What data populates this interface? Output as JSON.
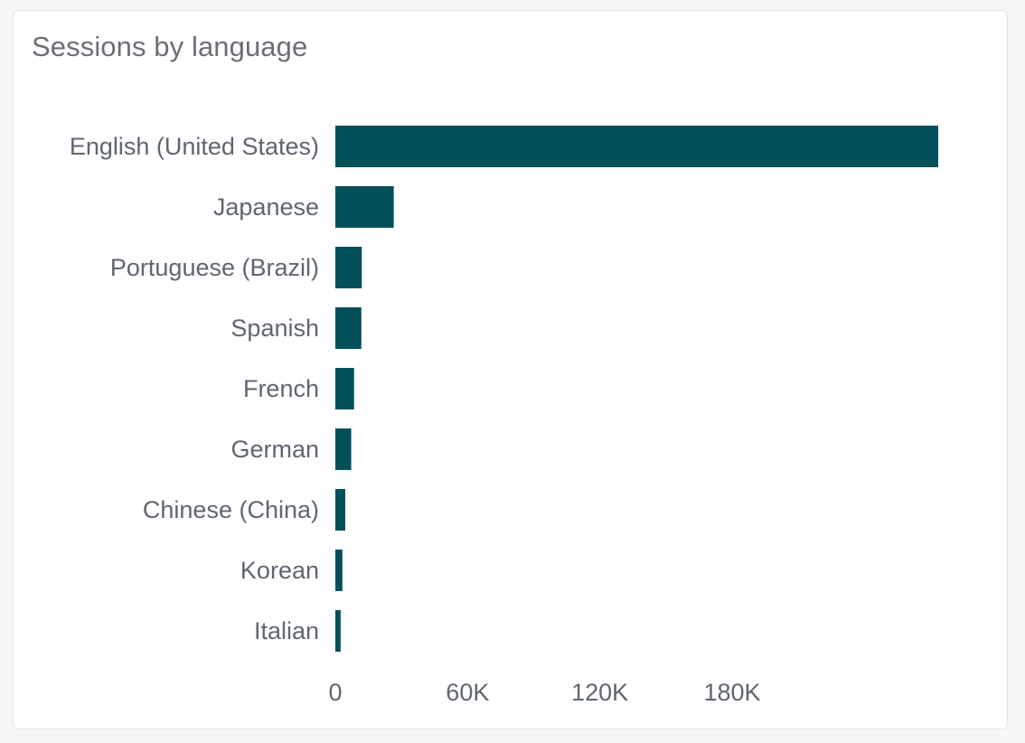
{
  "card": {
    "title": "Sessions by language"
  },
  "chart_data": {
    "type": "bar",
    "orientation": "horizontal",
    "title": "Sessions by language",
    "categories": [
      "English (United States)",
      "Japanese",
      "Portuguese (Brazil)",
      "Spanish",
      "French",
      "German",
      "Chinese (China)",
      "Korean",
      "Italian"
    ],
    "values": [
      273500,
      26500,
      12000,
      11800,
      8500,
      7200,
      4500,
      3200,
      2400
    ],
    "xlim": [
      0,
      273500
    ],
    "xticks": [
      0,
      60000,
      120000,
      180000
    ],
    "xtick_labels": [
      "0",
      "60K",
      "120K",
      "180K"
    ],
    "grid": false,
    "bar_color": "#04505a"
  }
}
